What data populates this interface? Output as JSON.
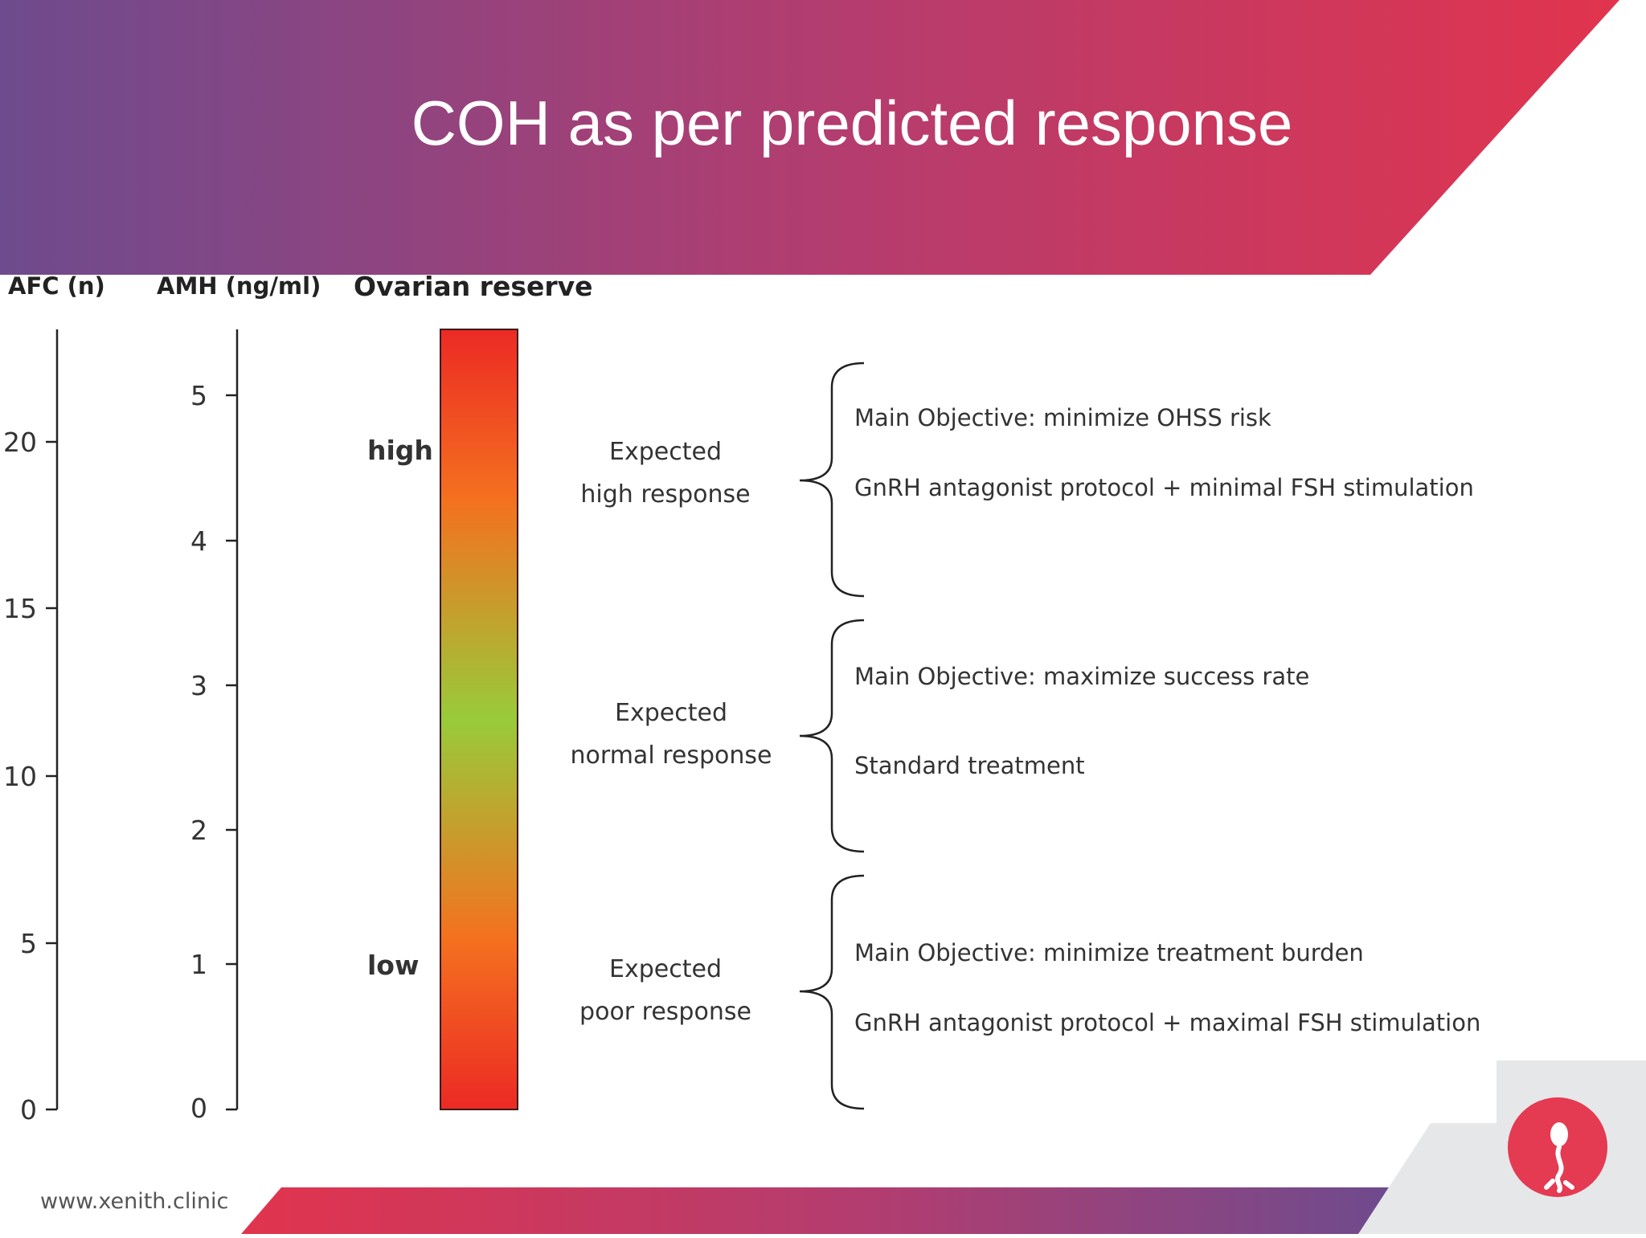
{
  "slide": {
    "title": "COH as per predicted response",
    "footer_url": "www.xenith.clinic",
    "colors": {
      "header_start": "#6e4b8e",
      "header_end": "#e1344e",
      "logo_circle": "#e43a52",
      "corner_gray": "#e6e7e9"
    },
    "logo_icon": "sperm-icon"
  },
  "diagram": {
    "column_headers": {
      "afc": "AFC (n)",
      "amh": "AMH (ng/ml)",
      "reserve": "Ovarian reserve"
    },
    "afc_ticks": [
      "0",
      "5",
      "10",
      "15",
      "20"
    ],
    "amh_ticks": [
      "0",
      "1",
      "2",
      "3",
      "4",
      "5"
    ],
    "reserve_labels": {
      "high": "high",
      "low": "low"
    },
    "gradient_colors": [
      "#ec2a24",
      "#f4711f",
      "#98cb3a",
      "#f4711f",
      "#ec2a24"
    ],
    "groups": [
      {
        "label1": "Expected",
        "label2": "high response",
        "line1": "Main Objective: minimize OHSS risk",
        "line2": "GnRH antagonist protocol + minimal FSH stimulation"
      },
      {
        "label1": "Expected",
        "label2": "normal response",
        "line1": "Main Objective: maximize success rate",
        "line2": "Standard treatment"
      },
      {
        "label1": "Expected",
        "label2": "poor response",
        "line1": "Main Objective: minimize treatment burden",
        "line2": "GnRH antagonist protocol + maximal FSH stimulation"
      }
    ]
  }
}
